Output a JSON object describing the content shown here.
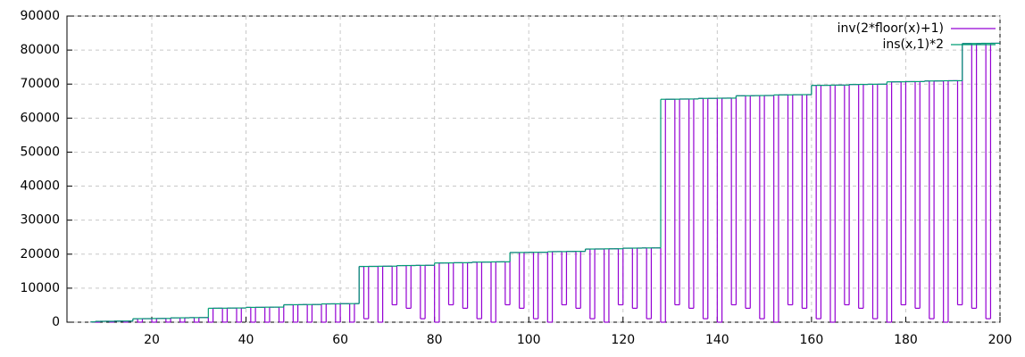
{
  "chart_data": {
    "type": "step",
    "x": [
      7,
      8,
      9,
      10,
      11,
      12,
      13,
      14,
      15,
      16,
      17,
      18,
      19,
      20,
      21,
      22,
      23,
      24,
      25,
      26,
      27,
      28,
      29,
      30,
      31,
      32,
      33,
      34,
      35,
      36,
      37,
      38,
      39,
      40,
      41,
      42,
      43,
      44,
      45,
      46,
      47,
      48,
      49,
      50,
      51,
      52,
      53,
      54,
      55,
      56,
      57,
      58,
      59,
      60,
      61,
      62,
      63,
      64,
      65,
      66,
      67,
      68,
      69,
      70,
      71,
      72,
      73,
      74,
      75,
      76,
      77,
      78,
      79,
      80,
      81,
      82,
      83,
      84,
      85,
      86,
      87,
      88,
      89,
      90,
      91,
      92,
      93,
      94,
      95,
      96,
      97,
      98,
      99,
      100,
      101,
      102,
      103,
      104,
      105,
      106,
      107,
      108,
      109,
      110,
      111,
      112,
      113,
      114,
      115,
      116,
      117,
      118,
      119,
      120,
      121,
      122,
      123,
      124,
      125,
      126,
      127,
      128,
      129,
      130,
      131,
      132,
      133,
      134,
      135,
      136,
      137,
      138,
      139,
      140,
      141,
      142,
      143,
      144,
      145,
      146,
      147,
      148,
      149,
      150,
      151,
      152,
      153,
      154,
      155,
      156,
      157,
      158,
      159,
      160,
      161,
      162,
      163,
      164,
      165,
      166,
      167,
      168,
      169,
      170,
      171,
      172,
      173,
      174,
      175,
      176,
      177,
      178,
      179,
      180,
      181,
      182,
      183,
      184,
      185,
      186,
      187,
      188,
      189,
      190,
      191,
      192,
      193,
      194,
      195,
      196,
      197,
      198,
      199
    ],
    "series": [
      {
        "name": "inv(2*floor(x)+1)",
        "color": "#9400d3",
        "values": [
          84,
          0,
          260,
          272,
          20,
          320,
          324,
          16,
          340,
          1024,
          4,
          1040,
          1044,
          0,
          1092,
          1104,
          20,
          1280,
          1284,
          16,
          1300,
          1344,
          4,
          1360,
          1364,
          0,
          4100,
          4112,
          20,
          4160,
          4164,
          16,
          4180,
          4352,
          4,
          4368,
          4372,
          0,
          4420,
          4432,
          20,
          5120,
          5124,
          16,
          5140,
          5184,
          4,
          5200,
          5204,
          0,
          5380,
          5392,
          20,
          5440,
          5444,
          16,
          5460,
          16384,
          1024,
          16400,
          16404,
          0,
          16452,
          16464,
          5120,
          16640,
          16644,
          4096,
          16660,
          16704,
          1024,
          16720,
          16724,
          0,
          17412,
          17424,
          5120,
          17472,
          17476,
          4096,
          17492,
          17664,
          1024,
          17680,
          17684,
          0,
          17732,
          17744,
          5120,
          20480,
          20484,
          4096,
          20500,
          20544,
          1024,
          20560,
          20564,
          0,
          20740,
          20752,
          5120,
          20800,
          20804,
          4096,
          20820,
          21504,
          1024,
          21520,
          21524,
          0,
          21572,
          21584,
          5120,
          21760,
          21764,
          4096,
          21780,
          21824,
          1024,
          21840,
          21844,
          0,
          65540,
          65552,
          5120,
          65600,
          65604,
          4096,
          65620,
          65792,
          1024,
          65808,
          65812,
          0,
          65860,
          65872,
          5120,
          66560,
          66564,
          4096,
          66580,
          66624,
          1024,
          66640,
          66644,
          0,
          66820,
          66832,
          5120,
          66880,
          66884,
          4096,
          66900,
          69632,
          1024,
          69648,
          69652,
          0,
          69700,
          69712,
          5120,
          69888,
          69892,
          4096,
          69908,
          69952,
          1024,
          69968,
          69972,
          0,
          70660,
          70672,
          5120,
          70720,
          70724,
          4096,
          70740,
          70912,
          1024,
          70928,
          70932,
          0,
          70980,
          70992,
          5120,
          81920,
          81924,
          4096,
          81940,
          81984,
          1024,
          82000,
          82004
        ]
      },
      {
        "name": "ins(x,1)*2",
        "color": "#009e73",
        "values": [
          84,
          256,
          260,
          272,
          276,
          320,
          324,
          336,
          340,
          1024,
          1028,
          1040,
          1044,
          1088,
          1092,
          1104,
          1108,
          1280,
          1284,
          1296,
          1300,
          1344,
          1348,
          1360,
          1364,
          4096,
          4100,
          4112,
          4116,
          4160,
          4164,
          4176,
          4180,
          4352,
          4356,
          4368,
          4372,
          4416,
          4420,
          4432,
          4436,
          5120,
          5124,
          5136,
          5140,
          5184,
          5188,
          5200,
          5204,
          5376,
          5380,
          5392,
          5396,
          5440,
          5444,
          5456,
          5460,
          16384,
          16388,
          16400,
          16404,
          16448,
          16452,
          16464,
          16468,
          16640,
          16644,
          16656,
          16660,
          16704,
          16708,
          16720,
          16724,
          17408,
          17412,
          17424,
          17428,
          17472,
          17476,
          17488,
          17492,
          17664,
          17668,
          17680,
          17684,
          17728,
          17732,
          17744,
          17748,
          20480,
          20484,
          20496,
          20500,
          20544,
          20548,
          20560,
          20564,
          20736,
          20740,
          20752,
          20756,
          20800,
          20804,
          20816,
          20820,
          21504,
          21508,
          21520,
          21524,
          21568,
          21572,
          21584,
          21588,
          21760,
          21764,
          21776,
          21780,
          21824,
          21828,
          21840,
          21844,
          65536,
          65540,
          65552,
          65556,
          65600,
          65604,
          65616,
          65620,
          65792,
          65796,
          65808,
          65812,
          65856,
          65860,
          65872,
          65876,
          66560,
          66564,
          66576,
          66580,
          66624,
          66628,
          66640,
          66644,
          66816,
          66820,
          66832,
          66836,
          66880,
          66884,
          66896,
          66900,
          69632,
          69636,
          69648,
          69652,
          69696,
          69700,
          69712,
          69716,
          69888,
          69892,
          69904,
          69908,
          69952,
          69956,
          69968,
          69972,
          70656,
          70660,
          70672,
          70676,
          70720,
          70724,
          70736,
          70740,
          70912,
          70916,
          70928,
          70932,
          70976,
          70980,
          70992,
          70996,
          81920,
          81924,
          81936,
          81940,
          81984,
          81988,
          82000,
          82004
        ]
      }
    ],
    "xlim": [
      2,
      200
    ],
    "ylim": [
      0,
      90000
    ],
    "xticks": [
      20,
      40,
      60,
      80,
      100,
      120,
      140,
      160,
      180,
      200
    ],
    "yticks": [
      0,
      10000,
      20000,
      30000,
      40000,
      50000,
      60000,
      70000,
      80000,
      90000
    ],
    "grid": true,
    "legend": "top-right"
  }
}
